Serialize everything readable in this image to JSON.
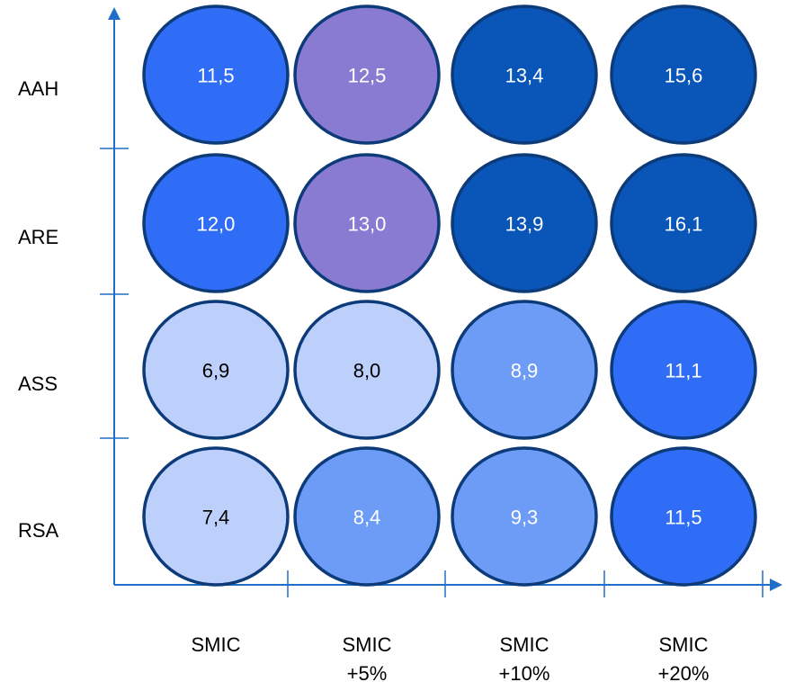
{
  "chart_data": {
    "type": "heatmap",
    "title": "",
    "xlabel": "",
    "ylabel": "",
    "rows": [
      "AAH",
      "ARE",
      "ASS",
      "RSA"
    ],
    "columns": [
      [
        "SMIC"
      ],
      [
        "SMIC",
        "+5%"
      ],
      [
        "SMIC",
        "+10%"
      ],
      [
        "SMIC",
        "+20%"
      ]
    ],
    "values": [
      [
        "11,5",
        "12,5",
        "13,4",
        "15,6"
      ],
      [
        "12,0",
        "13,0",
        "13,9",
        "16,1"
      ],
      [
        "6,9",
        "8,0",
        "8,9",
        "11,1"
      ],
      [
        "7,4",
        "8,4",
        "9,3",
        "11,5"
      ]
    ],
    "cell_colors": [
      [
        "#2f6df6",
        "#8a7bd2",
        "#0a55b8",
        "#0a55b8"
      ],
      [
        "#2f6df6",
        "#8a7bd2",
        "#0a55b8",
        "#0a55b8"
      ],
      [
        "#bcd0fb",
        "#bcd0fb",
        "#6d9cf7",
        "#2f6df6"
      ],
      [
        "#bcd0fb",
        "#6d9cf7",
        "#6d9cf7",
        "#2f6df6"
      ]
    ],
    "text_colors": [
      [
        "#ffffff",
        "#ffffff",
        "#ffffff",
        "#ffffff"
      ],
      [
        "#ffffff",
        "#ffffff",
        "#ffffff",
        "#ffffff"
      ],
      [
        "#000000",
        "#000000",
        "#ffffff",
        "#ffffff"
      ],
      [
        "#000000",
        "#ffffff",
        "#ffffff",
        "#ffffff"
      ]
    ],
    "axis_color": "#1f6fc9",
    "bubble_stroke": "#0d3a78",
    "grid": false,
    "legend": "none"
  }
}
